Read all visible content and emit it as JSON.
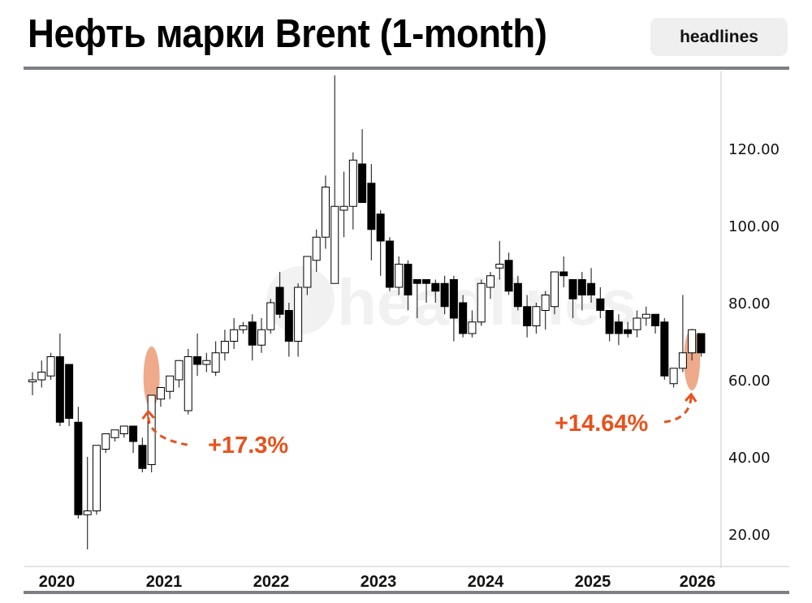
{
  "header": {
    "title": "Нефть марки Brent (1-month)",
    "brand_badge": "headlines"
  },
  "watermark": "headlines",
  "colors": {
    "accent": "#e8521c",
    "highlight": "#eeaa8a",
    "rule": "#7d7f86",
    "bull": "#ffffff",
    "bear": "#000000"
  },
  "chart_data": {
    "type": "candlestick",
    "title": "Нефть марки Brent (1-month)",
    "xlabel": "",
    "ylabel": "",
    "y_ticks": [
      "20.00",
      "40.00",
      "60.00",
      "80.00",
      "100.00",
      "120.00"
    ],
    "x_ticks": [
      "2020",
      "2021",
      "2022",
      "2023",
      "2024",
      "2025",
      "2026"
    ],
    "ylim": [
      15,
      140
    ],
    "grid": false,
    "axis_position": "right",
    "annotations": [
      {
        "text": "+17.3%",
        "target": "2021-02",
        "color": "#e8521c"
      },
      {
        "text": "+14.64%",
        "target": "2026-01",
        "color": "#e8521c"
      }
    ],
    "candles": [
      {
        "t": "2020-01",
        "o": 60,
        "h": 62,
        "l": 56,
        "c": 60
      },
      {
        "t": "2020-02",
        "o": 60,
        "h": 65,
        "l": 58,
        "c": 62
      },
      {
        "t": "2020-03",
        "o": 61,
        "h": 67,
        "l": 60,
        "c": 66
      },
      {
        "t": "2020-04",
        "o": 66,
        "h": 72,
        "l": 48,
        "c": 49
      },
      {
        "t": "2020-05",
        "o": 64,
        "h": 63,
        "l": 48,
        "c": 50
      },
      {
        "t": "2020-06",
        "o": 49,
        "h": 53,
        "l": 24,
        "c": 25
      },
      {
        "t": "2020-07",
        "o": 25,
        "h": 40,
        "l": 16,
        "c": 26
      },
      {
        "t": "2020-08",
        "o": 26,
        "h": 43,
        "l": 25,
        "c": 43
      },
      {
        "t": "2020-09",
        "o": 42,
        "h": 46,
        "l": 41,
        "c": 46
      },
      {
        "t": "2020-10",
        "o": 45,
        "h": 47,
        "l": 44,
        "c": 47
      },
      {
        "t": "2020-11",
        "o": 46,
        "h": 48,
        "l": 45,
        "c": 48
      },
      {
        "t": "2020-12",
        "o": 48,
        "h": 48,
        "l": 41,
        "c": 44
      },
      {
        "t": "2021-01",
        "o": 43,
        "h": 45,
        "l": 36,
        "c": 37
      },
      {
        "t": "2021-02",
        "o": 38,
        "h": 56,
        "l": 36,
        "c": 56
      },
      {
        "t": "2021-03",
        "o": 55,
        "h": 58,
        "l": 53,
        "c": 58
      },
      {
        "t": "2021-04",
        "o": 57,
        "h": 61,
        "l": 55,
        "c": 61
      },
      {
        "t": "2021-05",
        "o": 60,
        "h": 65,
        "l": 58,
        "c": 65
      },
      {
        "t": "2021-06",
        "o": 52,
        "h": 68,
        "l": 51,
        "c": 66
      },
      {
        "t": "2021-07",
        "o": 66,
        "h": 72,
        "l": 61,
        "c": 64
      },
      {
        "t": "2021-08",
        "o": 64,
        "h": 67,
        "l": 62,
        "c": 65
      },
      {
        "t": "2021-09",
        "o": 62,
        "h": 70,
        "l": 61,
        "c": 67
      },
      {
        "t": "2021-10",
        "o": 67,
        "h": 73,
        "l": 65,
        "c": 70
      },
      {
        "t": "2021-11",
        "o": 70,
        "h": 76,
        "l": 68,
        "c": 73
      },
      {
        "t": "2021-12",
        "o": 73,
        "h": 75,
        "l": 72,
        "c": 74
      },
      {
        "t": "2022-01",
        "o": 75,
        "h": 77,
        "l": 65,
        "c": 69
      },
      {
        "t": "2022-02",
        "o": 69,
        "h": 76,
        "l": 67,
        "c": 73
      },
      {
        "t": "2022-03",
        "o": 73,
        "h": 81,
        "l": 72,
        "c": 80
      },
      {
        "t": "2022-04",
        "o": 84,
        "h": 88,
        "l": 76,
        "c": 77
      },
      {
        "t": "2022-05",
        "o": 78,
        "h": 80,
        "l": 66,
        "c": 70
      },
      {
        "t": "2022-06",
        "o": 70,
        "h": 85,
        "l": 66,
        "c": 84
      },
      {
        "t": "2022-07",
        "o": 84,
        "h": 91,
        "l": 82,
        "c": 92
      },
      {
        "t": "2022-08",
        "o": 91,
        "h": 99,
        "l": 88,
        "c": 97
      },
      {
        "t": "2022-09",
        "o": 97,
        "h": 113,
        "l": 94,
        "c": 110
      },
      {
        "t": "2022-10",
        "o": 85,
        "h": 139,
        "l": 95,
        "c": 105
      },
      {
        "t": "2022-11",
        "o": 104,
        "h": 114,
        "l": 97,
        "c": 105
      },
      {
        "t": "2022-12",
        "o": 105,
        "h": 119,
        "l": 99,
        "c": 117
      },
      {
        "t": "2023-01",
        "o": 116,
        "h": 125,
        "l": 106,
        "c": 106
      },
      {
        "t": "2023-02",
        "o": 111,
        "h": 116,
        "l": 91,
        "c": 99
      },
      {
        "t": "2023-03",
        "o": 103,
        "h": 104,
        "l": 87,
        "c": 96
      },
      {
        "t": "2023-04",
        "o": 96,
        "h": 97,
        "l": 83,
        "c": 84
      },
      {
        "t": "2023-05",
        "o": 84,
        "h": 92,
        "l": 82,
        "c": 90
      },
      {
        "t": "2023-06",
        "o": 90,
        "h": 91,
        "l": 78,
        "c": 82
      },
      {
        "t": "2023-07",
        "o": 86,
        "h": 86,
        "l": 76,
        "c": 85
      },
      {
        "t": "2023-08",
        "o": 86,
        "h": 86,
        "l": 80,
        "c": 85
      },
      {
        "t": "2023-09",
        "o": 85,
        "h": 86,
        "l": 80,
        "c": 83
      },
      {
        "t": "2023-10",
        "o": 85,
        "h": 87,
        "l": 77,
        "c": 79
      },
      {
        "t": "2023-11",
        "o": 86,
        "h": 87,
        "l": 70,
        "c": 76
      },
      {
        "t": "2023-12",
        "o": 80,
        "h": 82,
        "l": 71,
        "c": 72
      },
      {
        "t": "2024-01",
        "o": 72,
        "h": 78,
        "l": 71,
        "c": 75
      },
      {
        "t": "2024-02",
        "o": 75,
        "h": 86,
        "l": 74,
        "c": 85
      },
      {
        "t": "2024-03",
        "o": 84,
        "h": 88,
        "l": 81,
        "c": 87
      },
      {
        "t": "2024-04",
        "o": 89,
        "h": 96,
        "l": 86,
        "c": 90
      },
      {
        "t": "2024-05",
        "o": 91,
        "h": 93,
        "l": 82,
        "c": 83
      },
      {
        "t": "2024-06",
        "o": 85,
        "h": 87,
        "l": 78,
        "c": 79
      },
      {
        "t": "2024-07",
        "o": 79,
        "h": 82,
        "l": 71,
        "c": 74
      },
      {
        "t": "2024-08",
        "o": 74,
        "h": 80,
        "l": 72,
        "c": 79
      },
      {
        "t": "2024-09",
        "o": 78,
        "h": 83,
        "l": 73,
        "c": 82
      },
      {
        "t": "2024-10",
        "o": 79,
        "h": 87,
        "l": 77,
        "c": 88
      },
      {
        "t": "2024-11",
        "o": 88,
        "h": 92,
        "l": 84,
        "c": 87
      },
      {
        "t": "2024-12",
        "o": 86,
        "h": 86,
        "l": 76,
        "c": 81
      },
      {
        "t": "2025-01",
        "o": 86,
        "h": 88,
        "l": 78,
        "c": 82
      },
      {
        "t": "2025-02",
        "o": 85,
        "h": 89,
        "l": 80,
        "c": 82
      },
      {
        "t": "2025-03",
        "o": 81,
        "h": 84,
        "l": 76,
        "c": 78
      },
      {
        "t": "2025-04",
        "o": 78,
        "h": 78,
        "l": 70,
        "c": 72
      },
      {
        "t": "2025-05",
        "o": 75,
        "h": 77,
        "l": 69,
        "c": 72
      },
      {
        "t": "2025-06",
        "o": 73,
        "h": 75,
        "l": 71,
        "c": 72
      },
      {
        "t": "2025-07",
        "o": 73,
        "h": 78,
        "l": 71,
        "c": 76
      },
      {
        "t": "2025-08",
        "o": 76,
        "h": 79,
        "l": 74,
        "c": 77
      },
      {
        "t": "2025-09",
        "o": 77,
        "h": 77,
        "l": 72,
        "c": 74
      },
      {
        "t": "2025-10",
        "o": 75,
        "h": 76,
        "l": 60,
        "c": 61
      },
      {
        "t": "2025-11",
        "o": 59,
        "h": 63,
        "l": 58,
        "c": 63
      },
      {
        "t": "2025-12",
        "o": 63,
        "h": 82,
        "l": 62,
        "c": 67
      },
      {
        "t": "2026-01",
        "o": 67,
        "h": 73,
        "l": 65,
        "c": 73
      },
      {
        "t": "2026-02",
        "o": 72,
        "h": 72,
        "l": 66,
        "c": 67
      }
    ]
  }
}
